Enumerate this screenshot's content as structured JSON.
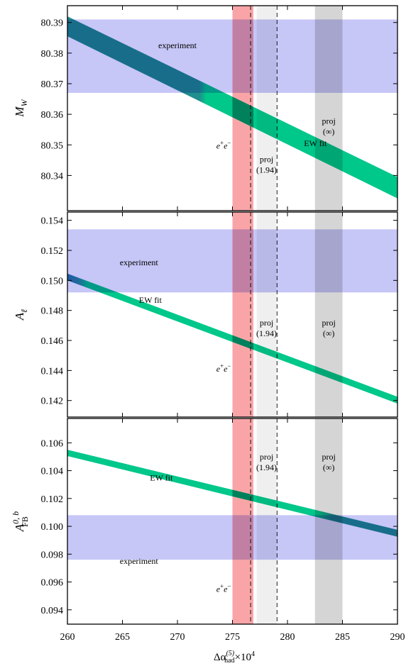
{
  "chart_data": {
    "type": "area",
    "xlabel": "Δα(5)had×10⁴",
    "xlabel_parts": {
      "base": "Δα",
      "sup": "(5)",
      "sub": "had",
      "suffix": "×10",
      "exp": "4"
    },
    "xlim": [
      260,
      290
    ],
    "xticks": [
      "260",
      "265",
      "270",
      "275",
      "280",
      "285",
      "290"
    ],
    "xticks_values": [
      260,
      265,
      270,
      275,
      280,
      285,
      290
    ],
    "bands": [
      {
        "label": "e⁺e⁻",
        "label_parts": {
          "base": "e",
          "sup1": "+",
          "mid": "e",
          "sup2": "−"
        },
        "range": [
          275.0,
          276.9
        ],
        "color": "#f9a5a8"
      },
      {
        "label": "proj (1.94)",
        "line1": "proj",
        "line2": "(1.94)",
        "range": [
          277.2,
          279.0
        ],
        "color": "#efefef"
      },
      {
        "label": "proj (∞)",
        "line1": "proj",
        "line2": "(∞)",
        "range": [
          282.5,
          285.0
        ],
        "color": "#d5d5d5"
      }
    ],
    "dashed_lines": [
      276.65,
      279.05
    ],
    "panels": [
      {
        "id": "mw",
        "ylabel": "M_W",
        "ylabel_parts": {
          "base": "M",
          "sub": "W"
        },
        "ylim": [
          80.3285,
          80.3955
        ],
        "yticks": [
          "80.34",
          "80.35",
          "80.36",
          "80.37",
          "80.38",
          "80.39"
        ],
        "yticks_values": [
          80.34,
          80.35,
          80.36,
          80.37,
          80.38,
          80.39
        ],
        "experiment": {
          "label": "experiment",
          "range": [
            80.367,
            80.391
          ],
          "color": "#c6c6f7"
        },
        "ew_fit": {
          "label": "EW fit",
          "x": [
            260,
            290
          ],
          "lower": [
            80.3855,
            80.3325
          ],
          "upper": [
            80.392,
            80.3395
          ]
        },
        "band_label_rows": {
          "ee": 80.3497,
          "proj194": 80.3435,
          "projinf": 80.356
        },
        "experiment_label_pos": [
          270,
          80.3825
        ],
        "ew_label_pos": [
          281.5,
          80.3505
        ]
      },
      {
        "id": "al",
        "ylabel": "A_ℓ",
        "ylabel_parts": {
          "base": "A",
          "sub": "ℓ"
        },
        "ylim": [
          0.1409,
          0.15455
        ],
        "yticks": [
          "0.142",
          "0.144",
          "0.146",
          "0.148",
          "0.150",
          "0.152",
          "0.154"
        ],
        "yticks_values": [
          0.142,
          0.144,
          0.146,
          0.148,
          0.15,
          0.152,
          0.154
        ],
        "experiment": {
          "label": "experiment",
          "range": [
            0.1492,
            0.1534
          ],
          "color": "#c6c6f7"
        },
        "ew_fit": {
          "label": "EW fit",
          "x": [
            260,
            290
          ],
          "lower": [
            0.15,
            0.1418
          ],
          "upper": [
            0.15045,
            0.14225
          ]
        },
        "band_label_rows": {
          "ee": 0.1441,
          "proj194": 0.1468,
          "projinf": 0.1468
        },
        "experiment_label_pos": [
          266.5,
          0.1512
        ],
        "ew_label_pos": [
          266.5,
          0.1487
        ]
      },
      {
        "id": "afb",
        "ylabel": "A_FB^{0,b}",
        "ylabel_parts": {
          "base": "A",
          "sup": "0, b",
          "sub": "FB"
        },
        "ylim": [
          0.09297,
          0.10775
        ],
        "yticks": [
          "0.094",
          "0.096",
          "0.098",
          "0.100",
          "0.102",
          "0.104",
          "0.106"
        ],
        "yticks_values": [
          0.094,
          0.096,
          0.098,
          0.1,
          0.102,
          0.104,
          0.106
        ],
        "experiment": {
          "label": "experiment",
          "range": [
            0.0976,
            0.1008
          ],
          "color": "#c6c6f7"
        },
        "ew_fit": {
          "label": "EW fit",
          "x": [
            260,
            290
          ],
          "lower": [
            0.10505,
            0.09925
          ],
          "upper": [
            0.1055,
            0.09975
          ]
        },
        "band_label_rows": {
          "ee": 0.0955,
          "proj194": 0.1046,
          "projinf": 0.1046
        },
        "experiment_label_pos": [
          266.5,
          0.0975
        ],
        "ew_label_pos": [
          267.5,
          0.1035
        ]
      }
    ],
    "colors": {
      "ew_teal": "#1f8e8e",
      "ew_green": "#00c78a",
      "band_overlap_blue": "#2a74a8"
    }
  }
}
